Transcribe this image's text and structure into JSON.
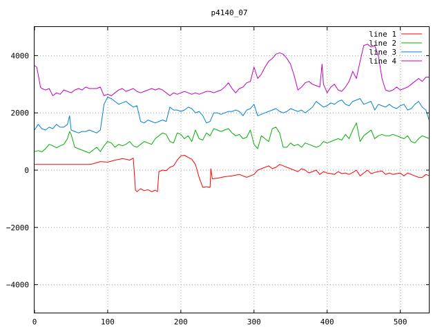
{
  "chart_data": {
    "type": "line",
    "title": "p4140_07",
    "xlabel": "",
    "ylabel": "",
    "xlim": [
      0,
      540
    ],
    "ylim": [
      -5000,
      5000
    ],
    "xticks": [
      0,
      100,
      200,
      300,
      400,
      500
    ],
    "yticks": [
      -4000,
      -2000,
      0,
      2000,
      4000
    ],
    "grid": true,
    "legend_position": "top-right",
    "series": [
      {
        "name": "line 1",
        "color": "#ff0000",
        "x": [
          0,
          75,
          80,
          90,
          100,
          110,
          120,
          125,
          130,
          135,
          138,
          140,
          145,
          150,
          155,
          160,
          165,
          168,
          170,
          175,
          180,
          185,
          190,
          195,
          200,
          205,
          210,
          215,
          220,
          225,
          230,
          235,
          240,
          241,
          243,
          245,
          250,
          260,
          270,
          280,
          290,
          300,
          305,
          310,
          315,
          320,
          325,
          330,
          335,
          340,
          345,
          350,
          355,
          360,
          365,
          370,
          375,
          380,
          385,
          390,
          395,
          400,
          405,
          410,
          415,
          420,
          425,
          430,
          435,
          440,
          445,
          450,
          455,
          460,
          465,
          470,
          475,
          480,
          485,
          490,
          495,
          500,
          505,
          510,
          515,
          520,
          525,
          530,
          535,
          540
        ],
        "y": [
          200,
          200,
          220,
          300,
          280,
          350,
          400,
          380,
          350,
          420,
          -700,
          -750,
          -650,
          -720,
          -680,
          -750,
          -700,
          -750,
          -50,
          0,
          -20,
          100,
          150,
          350,
          500,
          520,
          450,
          380,
          200,
          -250,
          -600,
          -580,
          -600,
          50,
          -300,
          -300,
          -280,
          -230,
          -200,
          -150,
          -250,
          -150,
          0,
          50,
          100,
          150,
          50,
          100,
          200,
          150,
          100,
          50,
          0,
          -50,
          50,
          0,
          -100,
          -50,
          0,
          -150,
          -50,
          -100,
          -120,
          -150,
          -50,
          -120,
          -100,
          -150,
          -80,
          0,
          -200,
          -100,
          0,
          -120,
          -80,
          -50,
          -30,
          -150,
          -100,
          -150,
          -120,
          -100,
          -200,
          -100,
          -150,
          -200,
          -250,
          -250,
          -150,
          -200
        ]
      },
      {
        "name": "line 2",
        "color": "#00b000",
        "x": [
          0,
          5,
          10,
          15,
          20,
          25,
          30,
          35,
          40,
          45,
          48,
          50,
          55,
          60,
          65,
          70,
          75,
          80,
          85,
          90,
          95,
          100,
          105,
          110,
          115,
          120,
          125,
          130,
          135,
          140,
          145,
          150,
          155,
          160,
          165,
          170,
          175,
          180,
          185,
          190,
          195,
          200,
          205,
          210,
          215,
          220,
          225,
          230,
          235,
          240,
          245,
          250,
          255,
          260,
          265,
          270,
          275,
          280,
          285,
          290,
          295,
          300,
          305,
          310,
          315,
          320,
          325,
          330,
          335,
          340,
          345,
          350,
          355,
          360,
          365,
          370,
          375,
          380,
          385,
          390,
          395,
          400,
          405,
          410,
          415,
          420,
          425,
          430,
          435,
          440,
          445,
          450,
          455,
          460,
          465,
          470,
          475,
          480,
          485,
          490,
          495,
          500,
          505,
          510,
          515,
          520,
          525,
          530,
          535,
          540
        ],
        "y": [
          650,
          680,
          640,
          750,
          900,
          850,
          780,
          850,
          900,
          1100,
          1350,
          1250,
          800,
          750,
          700,
          650,
          600,
          700,
          800,
          650,
          850,
          1000,
          950,
          800,
          900,
          850,
          900,
          1000,
          850,
          800,
          900,
          1000,
          950,
          900,
          1100,
          1200,
          1300,
          1250,
          1000,
          950,
          1300,
          1250,
          1100,
          1200,
          1000,
          1400,
          1100,
          1050,
          1300,
          1200,
          1450,
          1400,
          1350,
          1400,
          1450,
          1300,
          1200,
          1250,
          1100,
          1150,
          1400,
          900,
          750,
          1200,
          1100,
          1000,
          1450,
          1500,
          1300,
          800,
          800,
          950,
          850,
          900,
          800,
          950,
          900,
          850,
          800,
          850,
          1000,
          950,
          1000,
          1050,
          1100,
          1050,
          1250,
          1100,
          1400,
          1650,
          1000,
          1200,
          1300,
          1400,
          1100,
          1200,
          1250,
          1200,
          1200,
          1250,
          1200,
          1150,
          1100,
          1200,
          1000,
          950,
          1100,
          1200,
          1150,
          1100
        ]
      },
      {
        "name": "line 3",
        "color": "#0080d0",
        "x": [
          0,
          5,
          10,
          15,
          20,
          25,
          30,
          35,
          40,
          45,
          48,
          50,
          55,
          60,
          65,
          70,
          75,
          80,
          85,
          90,
          95,
          100,
          105,
          110,
          115,
          120,
          125,
          130,
          135,
          140,
          145,
          150,
          155,
          160,
          165,
          170,
          175,
          180,
          185,
          190,
          195,
          200,
          205,
          210,
          215,
          220,
          225,
          230,
          235,
          240,
          245,
          250,
          255,
          260,
          265,
          270,
          275,
          280,
          285,
          290,
          295,
          300,
          305,
          310,
          315,
          320,
          325,
          330,
          335,
          340,
          345,
          350,
          355,
          360,
          365,
          370,
          375,
          380,
          385,
          390,
          395,
          400,
          405,
          410,
          415,
          420,
          425,
          430,
          435,
          440,
          445,
          450,
          455,
          460,
          465,
          470,
          475,
          480,
          485,
          490,
          495,
          500,
          505,
          510,
          515,
          520,
          525,
          530,
          535,
          540
        ],
        "y": [
          1400,
          1600,
          1450,
          1400,
          1500,
          1450,
          1600,
          1500,
          1500,
          1600,
          1900,
          1400,
          1350,
          1300,
          1350,
          1350,
          1400,
          1350,
          1300,
          1400,
          2300,
          2550,
          2500,
          2400,
          2300,
          2350,
          2400,
          2300,
          2200,
          2250,
          1700,
          1650,
          1750,
          1700,
          1650,
          1700,
          1750,
          1700,
          2200,
          2100,
          2100,
          2050,
          2100,
          2200,
          2150,
          2000,
          2050,
          1900,
          1650,
          1700,
          2000,
          2000,
          1950,
          2000,
          2050,
          2050,
          2100,
          2050,
          1900,
          2100,
          2150,
          2300,
          1900,
          1950,
          2000,
          2050,
          2100,
          2150,
          2050,
          2000,
          2050,
          2150,
          2100,
          2050,
          2100,
          2000,
          2100,
          2200,
          2400,
          2300,
          2200,
          2250,
          2350,
          2300,
          2400,
          2450,
          2300,
          2250,
          2400,
          2450,
          2500,
          2300,
          2350,
          2400,
          2100,
          2300,
          2250,
          2200,
          2300,
          2200,
          2150,
          2250,
          2300,
          2100,
          2150,
          2300,
          2400,
          2200,
          2100,
          1700
        ]
      },
      {
        "name": "line 4",
        "color": "#c000c0",
        "x": [
          0,
          3,
          6,
          8,
          10,
          15,
          20,
          25,
          30,
          35,
          40,
          45,
          50,
          55,
          60,
          65,
          70,
          75,
          80,
          85,
          90,
          95,
          100,
          105,
          110,
          115,
          120,
          125,
          130,
          135,
          140,
          145,
          150,
          155,
          160,
          165,
          170,
          175,
          180,
          185,
          190,
          195,
          200,
          205,
          210,
          215,
          220,
          225,
          230,
          235,
          240,
          245,
          250,
          255,
          260,
          265,
          270,
          275,
          280,
          285,
          290,
          295,
          300,
          305,
          310,
          315,
          320,
          325,
          330,
          335,
          340,
          345,
          350,
          355,
          360,
          365,
          370,
          375,
          380,
          385,
          390,
          393,
          395,
          400,
          405,
          410,
          415,
          420,
          425,
          430,
          435,
          440,
          445,
          450,
          455,
          460,
          465,
          470,
          475,
          480,
          485,
          490,
          495,
          500,
          505,
          510,
          515,
          520,
          525,
          530,
          535,
          540
        ],
        "y": [
          3650,
          3600,
          3200,
          2900,
          2850,
          2800,
          2850,
          2600,
          2700,
          2650,
          2800,
          2750,
          2700,
          2800,
          2850,
          2800,
          2900,
          2850,
          2850,
          2850,
          2900,
          2600,
          2650,
          2600,
          2700,
          2800,
          2850,
          2750,
          2800,
          2850,
          2750,
          2700,
          2750,
          2800,
          2850,
          2800,
          2850,
          2800,
          2700,
          2600,
          2700,
          2650,
          2700,
          2750,
          2700,
          2650,
          2700,
          2650,
          2700,
          2750,
          2750,
          2700,
          2750,
          2800,
          2900,
          3050,
          2850,
          2700,
          2850,
          2900,
          3050,
          3100,
          3600,
          3200,
          3350,
          3600,
          3800,
          3900,
          4050,
          4100,
          4050,
          3900,
          3700,
          3300,
          2800,
          2900,
          3050,
          3100,
          3000,
          2950,
          2900,
          3700,
          3000,
          2700,
          2900,
          3000,
          2800,
          2750,
          2900,
          3100,
          3450,
          3200,
          3800,
          4350,
          4400,
          4300,
          4350,
          4000,
          3200,
          2800,
          2750,
          2800,
          2900,
          2800,
          2850,
          2900,
          3000,
          3100,
          3200,
          3100,
          3250,
          3250
        ]
      }
    ]
  }
}
